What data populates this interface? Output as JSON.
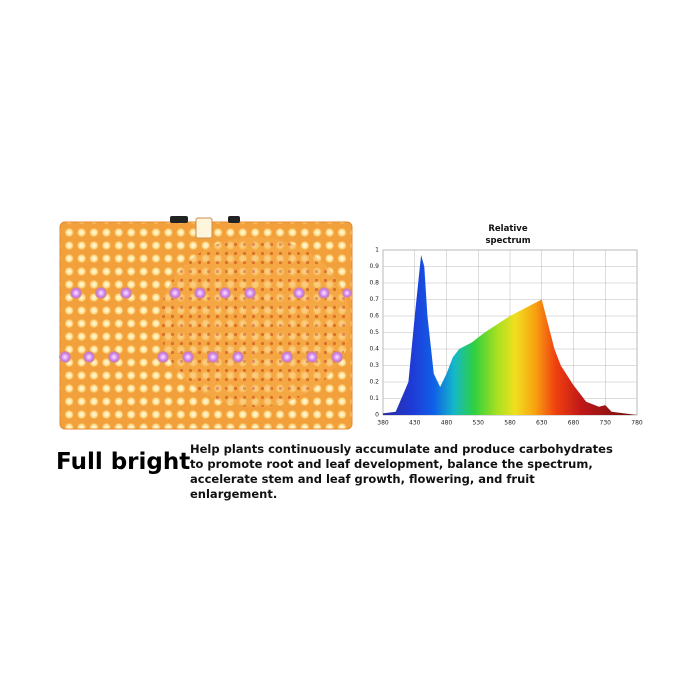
{
  "heading": "Full bright",
  "description": "Help plants continuously accumulate and produce carbohydrates to promote root and leaf development, balance the spectrum, accelerate stem and leaf growth, flowering, and fruit enlargement.",
  "chart_data": {
    "type": "area",
    "title": "Relative spectrum",
    "x": [
      380,
      400,
      420,
      430,
      440,
      445,
      450,
      460,
      470,
      480,
      490,
      500,
      520,
      540,
      560,
      580,
      600,
      620,
      630,
      640,
      650,
      660,
      680,
      700,
      720,
      730,
      740,
      760,
      780
    ],
    "values": [
      0.01,
      0.02,
      0.2,
      0.6,
      0.97,
      0.9,
      0.6,
      0.25,
      0.17,
      0.25,
      0.35,
      0.4,
      0.44,
      0.5,
      0.55,
      0.6,
      0.64,
      0.68,
      0.7,
      0.55,
      0.4,
      0.3,
      0.18,
      0.08,
      0.05,
      0.06,
      0.02,
      0.01,
      0
    ],
    "xlim": [
      380,
      780
    ],
    "xticks": [
      380,
      430,
      480,
      530,
      580,
      630,
      680,
      730,
      780
    ],
    "ylim": [
      0,
      1
    ],
    "yticks": [
      0,
      0.1,
      0.2,
      0.3,
      0.4,
      0.5,
      0.6,
      0.7,
      0.8,
      0.9,
      1
    ],
    "grid": true
  }
}
